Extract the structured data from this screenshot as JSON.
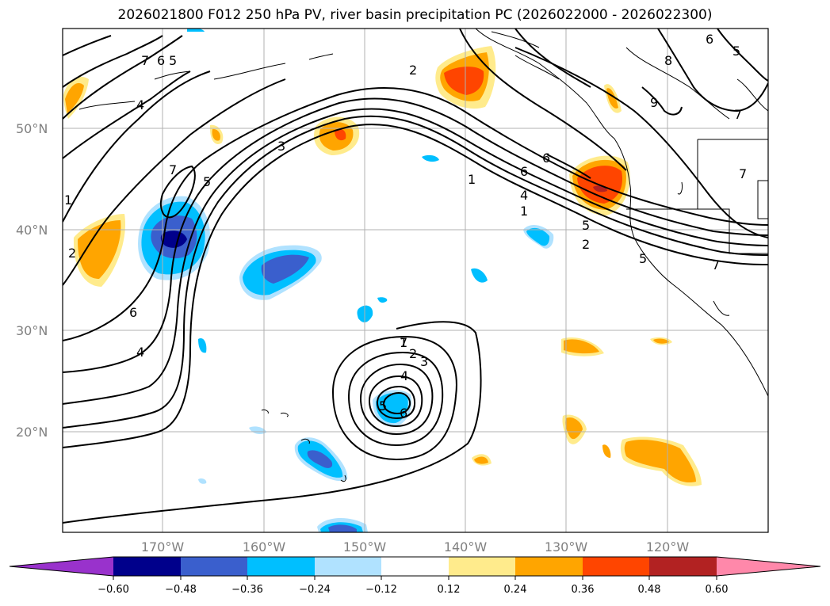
{
  "title": "2026021800 F012 250 hPa PV, river basin precipitation PC (2026022000 - 2026022300)",
  "axes": {
    "lat_labels": [
      "50°N",
      "40°N",
      "30°N",
      "20°N"
    ],
    "lon_labels": [
      "170°W",
      "160°W",
      "150°W",
      "140°W",
      "130°W",
      "120°W"
    ]
  },
  "colorbar": {
    "ticks": [
      "−0.60",
      "−0.48",
      "−0.36",
      "−0.24",
      "−0.12",
      "0.12",
      "0.24",
      "0.36",
      "0.48",
      "0.60"
    ],
    "colors": [
      "#9932cc",
      "#00008b",
      "#3a5fcd",
      "#00bfff",
      "#b0e2ff",
      "#ffffff",
      "#ffeb8c",
      "#ffa500",
      "#ff4500",
      "#b22222",
      "#ff88aa"
    ]
  },
  "contour_labels": [
    "7",
    "6",
    "5",
    "4",
    "3",
    "2",
    "1",
    "6",
    "5",
    "4",
    "3",
    "2",
    "1",
    "9",
    "8",
    "7",
    "6",
    "5",
    "4",
    "3",
    "2",
    "1",
    "7"
  ],
  "colors": {
    "land_line": "#000000",
    "grid": "#b0b0b0",
    "contour": "#000000"
  }
}
